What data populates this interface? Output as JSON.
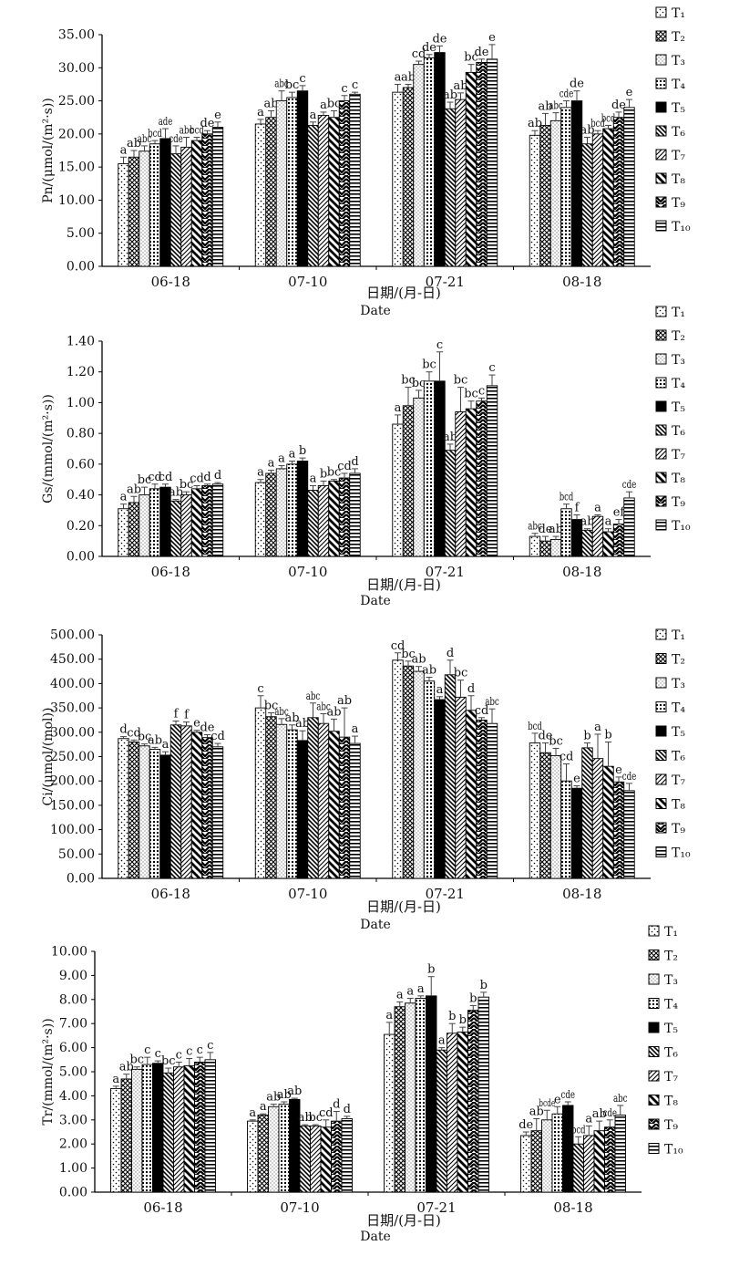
{
  "chart_data": [
    {
      "type": "bar",
      "ylabel": "Pn/(μmol/(m²·s))",
      "xlabel": "日期/(月-日)",
      "xlabel2": "Date",
      "ylim": [
        0,
        35
      ],
      "yticks": [
        "0.00",
        "5.00",
        "10.00",
        "15.00",
        "20.00",
        "25.00",
        "30.00",
        "35.00"
      ],
      "categories": [
        "06-18",
        "07-10",
        "07-21",
        "08-18"
      ],
      "series": [
        {
          "name": "T1",
          "values": [
            15.5,
            21.5,
            26.3,
            19.8
          ],
          "errors": [
            1.0,
            0.7,
            1.2,
            0.7
          ],
          "labels": [
            "a",
            "a",
            "a",
            "ab"
          ]
        },
        {
          "name": "T2",
          "values": [
            16.5,
            22.5,
            27.0,
            21.3
          ],
          "errors": [
            1.0,
            1.0,
            0.5,
            1.8
          ],
          "labels": [
            "ab",
            "ab",
            "ab",
            "ab"
          ]
        },
        {
          "name": "T3",
          "values": [
            17.4,
            25.0,
            30.5,
            22.0
          ],
          "errors": [
            0.8,
            1.5,
            0.5,
            1.2
          ],
          "labels": [
            "abc",
            "abc",
            "cd",
            "abc"
          ]
        },
        {
          "name": "T4",
          "values": [
            18.5,
            25.5,
            31.5,
            24.0
          ],
          "errors": [
            0.5,
            0.8,
            0.5,
            1.0
          ],
          "labels": [
            "bcd",
            "bc",
            "de",
            "cde"
          ]
        },
        {
          "name": "T5",
          "values": [
            19.3,
            26.5,
            32.3,
            25.0
          ],
          "errors": [
            1.5,
            0.8,
            1.0,
            1.5
          ],
          "labels": [
            "ade",
            "c",
            "de",
            "de"
          ]
        },
        {
          "name": "T6",
          "values": [
            17.0,
            21.3,
            23.8,
            18.5
          ],
          "errors": [
            1.2,
            0.5,
            1.0,
            1.0
          ],
          "labels": [
            "cde",
            "a",
            "ab",
            "ab"
          ]
        },
        {
          "name": "T7",
          "values": [
            18.0,
            22.8,
            25.2,
            20.0
          ],
          "errors": [
            1.5,
            0.5,
            1.0,
            0.5
          ],
          "labels": [
            "abc",
            "a",
            "ab",
            "bcd"
          ]
        },
        {
          "name": "T8",
          "values": [
            19.0,
            22.5,
            29.3,
            20.8
          ],
          "errors": [
            0.5,
            1.0,
            1.2,
            0.5
          ],
          "labels": [
            "bcd",
            "bc",
            "bc",
            "bcd"
          ]
        },
        {
          "name": "T9",
          "values": [
            20.0,
            25.0,
            30.8,
            22.5
          ],
          "errors": [
            0.5,
            0.8,
            0.5,
            0.8
          ],
          "labels": [
            "de",
            "c",
            "de",
            "de"
          ]
        },
        {
          "name": "T10",
          "values": [
            21.0,
            26.0,
            31.3,
            24.0
          ],
          "errors": [
            0.8,
            0.3,
            2.2,
            1.2
          ],
          "labels": [
            "e",
            "c",
            "e",
            "e"
          ]
        }
      ]
    },
    {
      "type": "bar",
      "ylabel": "Gs/(mmol/(m²·s))",
      "xlabel": "日期/(月-日)",
      "xlabel2": "Date",
      "ylim": [
        0,
        1.4
      ],
      "yticks": [
        "0.00",
        "0.20",
        "0.40",
        "0.60",
        "0.80",
        "1.00",
        "1.20",
        "1.40"
      ],
      "categories": [
        "06-18",
        "07-10",
        "07-21",
        "08-18"
      ],
      "series": [
        {
          "name": "T1",
          "values": [
            0.31,
            0.48,
            0.86,
            0.13
          ],
          "errors": [
            0.03,
            0.02,
            0.06,
            0.02
          ],
          "labels": [
            "a",
            "a",
            "a",
            "abc"
          ]
        },
        {
          "name": "T2",
          "values": [
            0.35,
            0.54,
            0.98,
            0.1
          ],
          "errors": [
            0.04,
            0.02,
            0.12,
            0.03
          ],
          "labels": [
            "ab",
            "a",
            "bc",
            "de"
          ]
        },
        {
          "name": "T3",
          "values": [
            0.4,
            0.57,
            1.03,
            0.11
          ],
          "errors": [
            0.05,
            0.02,
            0.05,
            0.02
          ],
          "labels": [
            "bc",
            "a",
            "bc",
            "ab"
          ]
        },
        {
          "name": "T4",
          "values": [
            0.44,
            0.6,
            1.14,
            0.31
          ],
          "errors": [
            0.03,
            0.02,
            0.06,
            0.03
          ],
          "labels": [
            "cd",
            "a",
            "bc",
            "bcd"
          ]
        },
        {
          "name": "T5",
          "values": [
            0.45,
            0.62,
            1.14,
            0.24
          ],
          "errors": [
            0.02,
            0.02,
            0.19,
            0.03
          ],
          "labels": [
            "cd",
            "b",
            "c",
            "f"
          ]
        },
        {
          "name": "T6",
          "values": [
            0.36,
            0.43,
            0.69,
            0.17
          ],
          "errors": [
            0.01,
            0.03,
            0.04,
            0.01
          ],
          "labels": [
            "ab",
            "a",
            "ab",
            "ab"
          ]
        },
        {
          "name": "T7",
          "values": [
            0.4,
            0.46,
            0.94,
            0.26
          ],
          "errors": [
            0.02,
            0.03,
            0.16,
            0.01
          ],
          "labels": [
            "bc",
            "b",
            "bc",
            "a"
          ]
        },
        {
          "name": "T8",
          "values": [
            0.44,
            0.49,
            0.96,
            0.16
          ],
          "errors": [
            0.02,
            0.01,
            0.05,
            0.02
          ],
          "labels": [
            "cd",
            "bc",
            "bc",
            "a"
          ]
        },
        {
          "name": "T9",
          "values": [
            0.46,
            0.51,
            1.01,
            0.21
          ],
          "errors": [
            0.01,
            0.03,
            0.02,
            0.03
          ],
          "labels": [
            "d",
            "cd",
            "c",
            "ef"
          ]
        },
        {
          "name": "T10",
          "values": [
            0.47,
            0.54,
            1.11,
            0.38
          ],
          "errors": [
            0.01,
            0.03,
            0.07,
            0.04
          ],
          "labels": [
            "d",
            "d",
            "c",
            "cde"
          ]
        }
      ]
    },
    {
      "type": "bar",
      "ylabel": "Ci/(μmol/(mol))",
      "xlabel": "日期/(月-日)",
      "xlabel2": "Date",
      "ylim": [
        0,
        500
      ],
      "yticks": [
        "0.00",
        "50.00",
        "100.00",
        "150.00",
        "200.00",
        "250.00",
        "300.00",
        "350.00",
        "400.00",
        "450.00",
        "500.00"
      ],
      "categories": [
        "06-18",
        "07-10",
        "07-21",
        "08-18"
      ],
      "series": [
        {
          "name": "T1",
          "values": [
            287,
            350,
            448,
            278
          ],
          "errors": [
            4,
            25,
            15,
            20
          ],
          "labels": [
            "d",
            "c",
            "cd",
            "bcd"
          ]
        },
        {
          "name": "T2",
          "values": [
            280,
            332,
            436,
            258
          ],
          "errors": [
            4,
            8,
            10,
            20
          ],
          "labels": [
            "cd",
            "bc",
            "bc",
            "de"
          ]
        },
        {
          "name": "T3",
          "values": [
            272,
            316,
            425,
            252
          ],
          "errors": [
            4,
            12,
            10,
            15
          ],
          "labels": [
            "bc",
            "abc",
            "ab",
            "bc"
          ]
        },
        {
          "name": "T4",
          "values": [
            265,
            305,
            405,
            200
          ],
          "errors": [
            4,
            10,
            8,
            35
          ],
          "labels": [
            "ab",
            "ab",
            "ab",
            "cd"
          ]
        },
        {
          "name": "T5",
          "values": [
            253,
            283,
            367,
            185
          ],
          "errors": [
            7,
            20,
            6,
            5
          ],
          "labels": [
            "a",
            "ab",
            "a",
            "e"
          ]
        },
        {
          "name": "T6",
          "values": [
            315,
            330,
            418,
            268
          ],
          "errors": [
            8,
            30,
            30,
            10
          ],
          "labels": [
            "f",
            "abc",
            "d",
            "b"
          ]
        },
        {
          "name": "T7",
          "values": [
            313,
            318,
            372,
            246
          ],
          "errors": [
            8,
            20,
            35,
            50
          ],
          "labels": [
            "f",
            "abc",
            "bc",
            "a"
          ]
        },
        {
          "name": "T8",
          "values": [
            300,
            302,
            345,
            230
          ],
          "errors": [
            4,
            25,
            30,
            50
          ],
          "labels": [
            "e",
            "ab",
            "d",
            "b"
          ]
        },
        {
          "name": "T9",
          "values": [
            289,
            290,
            325,
            198
          ],
          "errors": [
            6,
            60,
            5,
            10
          ],
          "labels": [
            "de",
            "ab",
            "cd",
            "e"
          ]
        },
        {
          "name": "T10",
          "values": [
            270,
            277,
            318,
            180
          ],
          "errors": [
            7,
            15,
            30,
            15
          ],
          "labels": [
            "cd",
            "a",
            "abc",
            "cde"
          ]
        }
      ]
    },
    {
      "type": "bar",
      "ylabel": "Tr/(mmol/(m²·s))",
      "xlabel": "日期/(月-日)",
      "xlabel2": "Date",
      "ylim": [
        0,
        10
      ],
      "yticks": [
        "0.00",
        "1.00",
        "2.00",
        "3.00",
        "4.00",
        "5.00",
        "6.00",
        "7.00",
        "8.00",
        "9.00",
        "10.00"
      ],
      "categories": [
        "06-18",
        "07-10",
        "07-21",
        "08-18"
      ],
      "series": [
        {
          "name": "T1",
          "values": [
            4.3,
            2.95,
            6.55,
            2.35
          ],
          "errors": [
            0.1,
            0.05,
            0.5,
            0.15
          ],
          "labels": [
            "a",
            "a",
            "a",
            "de"
          ]
        },
        {
          "name": "T2",
          "values": [
            4.7,
            3.2,
            7.7,
            2.55
          ],
          "errors": [
            0.2,
            0.05,
            0.2,
            0.5
          ],
          "labels": [
            "ab",
            "a",
            "a",
            "ab"
          ]
        },
        {
          "name": "T3",
          "values": [
            5.1,
            3.55,
            7.85,
            3.0
          ],
          "errors": [
            0.1,
            0.1,
            0.2,
            0.4
          ],
          "labels": [
            "bc",
            "ab",
            "a",
            "bcde"
          ]
        },
        {
          "name": "T4",
          "values": [
            5.3,
            3.65,
            8.05,
            3.25
          ],
          "errors": [
            0.3,
            0.1,
            0.1,
            0.3
          ],
          "labels": [
            "c",
            "ab",
            "a",
            "e"
          ]
        },
        {
          "name": "T5",
          "values": [
            5.35,
            3.85,
            8.15,
            3.6
          ],
          "errors": [
            0.1,
            0.05,
            0.8,
            0.15
          ],
          "labels": [
            "c",
            "ab",
            "b",
            "cde"
          ]
        },
        {
          "name": "T6",
          "values": [
            4.95,
            2.75,
            5.9,
            2.0
          ],
          "errors": [
            0.2,
            0.05,
            0.1,
            0.3
          ],
          "labels": [
            "bc",
            "ab",
            "a",
            "bcd"
          ]
        },
        {
          "name": "T7",
          "values": [
            5.2,
            2.75,
            6.6,
            2.35
          ],
          "errors": [
            0.2,
            0.05,
            0.4,
            0.4
          ],
          "labels": [
            "c",
            "bc",
            "b",
            "a"
          ]
        },
        {
          "name": "T8",
          "values": [
            5.25,
            2.7,
            6.65,
            2.55
          ],
          "errors": [
            0.3,
            0.3,
            0.2,
            0.4
          ],
          "labels": [
            "c",
            "cd",
            "b",
            "ab"
          ]
        },
        {
          "name": "T9",
          "values": [
            5.4,
            2.95,
            7.55,
            2.7
          ],
          "errors": [
            0.2,
            0.4,
            0.2,
            0.3
          ],
          "labels": [
            "c",
            "d",
            "b",
            "cde"
          ]
        },
        {
          "name": "T10",
          "values": [
            5.5,
            3.05,
            8.1,
            3.2
          ],
          "errors": [
            0.3,
            0.1,
            0.2,
            0.4
          ],
          "labels": [
            "c",
            "d",
            "b",
            "abc"
          ]
        }
      ]
    }
  ]
}
